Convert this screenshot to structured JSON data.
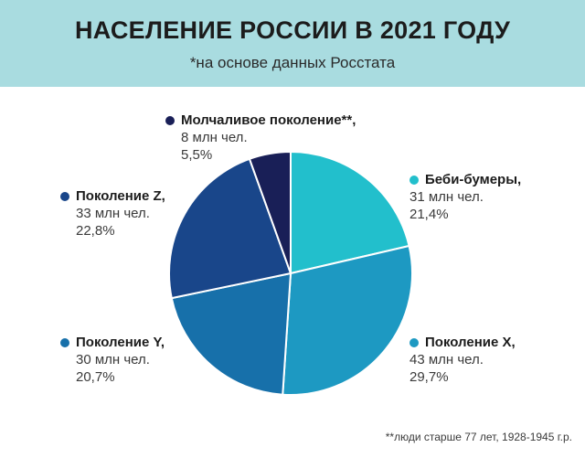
{
  "header": {
    "title": "НАСЕЛЕНИЕ РОССИИ В 2021 ГОДУ",
    "subtitle": "*на основе данных Росстата"
  },
  "footnote": "**люди старше 77 лет, 1928-1945 г.р.",
  "chart_data": {
    "type": "pie",
    "title": "НАСЕЛЕНИЕ РОССИИ В 2021 ГОДУ",
    "subtitle": "*на основе данных Росстата",
    "slices": [
      {
        "name": "Беби-бумеры,",
        "amount": "31 млн чел.",
        "percent_label": "21,4%",
        "value": 21.4,
        "color": "#22bfcc"
      },
      {
        "name": "Поколение X,",
        "amount": "43 млн чел.",
        "percent_label": "29,7%",
        "value": 29.7,
        "color": "#1d99c2"
      },
      {
        "name": "Поколение Y,",
        "amount": "30 млн чел.",
        "percent_label": "20,7%",
        "value": 20.7,
        "color": "#1770aa"
      },
      {
        "name": "Поколение Z,",
        "amount": "33 млн чел.",
        "percent_label": "22,8%",
        "value": 22.8,
        "color": "#19468a"
      },
      {
        "name": "Молчаливое поколение**,",
        "amount": "8 млн чел.",
        "percent_label": "5,5%",
        "value": 5.5,
        "color": "#191f57"
      }
    ]
  }
}
